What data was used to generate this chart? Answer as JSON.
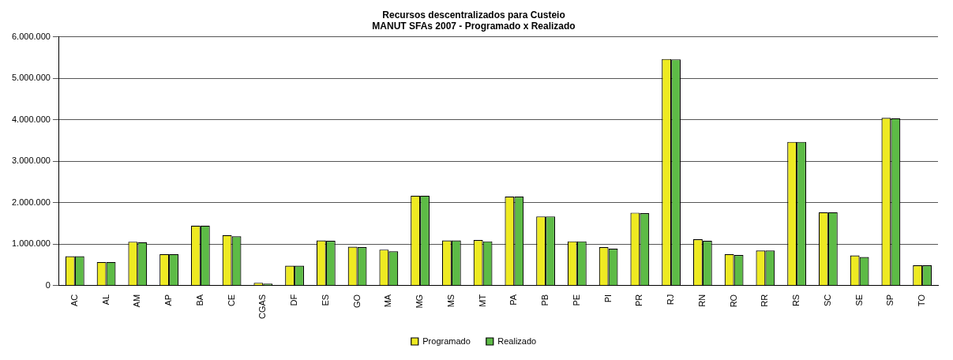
{
  "chart_data": {
    "type": "bar",
    "title": [
      "Recursos descentralizados para Custeio",
      "MANUT SFAs 2007 - Programado x Realizado"
    ],
    "categories": [
      "AC",
      "AL",
      "AM",
      "AP",
      "BA",
      "CE",
      "CGAS",
      "DF",
      "ES",
      "GO",
      "MA",
      "MG",
      "MS",
      "MT",
      "PA",
      "PB",
      "PE",
      "PI",
      "PR",
      "RJ",
      "RN",
      "RO",
      "RR",
      "RS",
      "SC",
      "SE",
      "SP",
      "TO"
    ],
    "series": [
      {
        "name": "Programado",
        "color": "#eeea22",
        "values": [
          710000,
          570000,
          1060000,
          760000,
          1450000,
          1220000,
          70000,
          480000,
          1090000,
          940000,
          870000,
          2170000,
          1090000,
          1100000,
          2150000,
          1670000,
          1070000,
          930000,
          1760000,
          5470000,
          1120000,
          760000,
          850000,
          3470000,
          1770000,
          730000,
          4050000,
          490000
        ]
      },
      {
        "name": "Realizado",
        "color": "#5dbb46",
        "values": [
          710000,
          570000,
          1050000,
          760000,
          1450000,
          1190000,
          50000,
          480000,
          1080000,
          930000,
          830000,
          2170000,
          1090000,
          1070000,
          2150000,
          1670000,
          1070000,
          890000,
          1750000,
          5460000,
          1080000,
          740000,
          850000,
          3470000,
          1770000,
          690000,
          4040000,
          490000
        ]
      }
    ],
    "ylim": [
      0,
      6000000
    ],
    "yticks": [
      {
        "value": 0,
        "label": "0"
      },
      {
        "value": 1000000,
        "label": "1.000.000"
      },
      {
        "value": 2000000,
        "label": "2.000.000"
      },
      {
        "value": 3000000,
        "label": "3.000.000"
      },
      {
        "value": 4000000,
        "label": "4.000.000"
      },
      {
        "value": 5000000,
        "label": "5.000.000"
      },
      {
        "value": 6000000,
        "label": "6.000.000"
      }
    ],
    "grid": "y",
    "legend": "bottom"
  }
}
